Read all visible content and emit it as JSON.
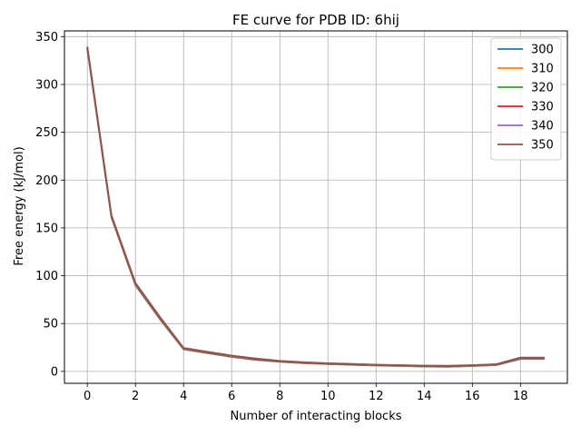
{
  "chart_data": {
    "type": "line",
    "title": "FE curve for PDB ID: 6hij",
    "xlabel": "Number of interacting blocks",
    "ylabel": "Free energy (kJ/mol)",
    "xlim": [
      -0.95,
      19.95
    ],
    "ylim": [
      -12.5,
      356
    ],
    "xticks": [
      0,
      2,
      4,
      6,
      8,
      10,
      12,
      14,
      16,
      18
    ],
    "yticks": [
      0,
      50,
      100,
      150,
      200,
      250,
      300,
      350
    ],
    "grid": true,
    "legend_position": "top-right",
    "x": [
      0,
      1,
      2,
      3,
      4,
      5,
      6,
      7,
      8,
      9,
      10,
      11,
      12,
      13,
      14,
      15,
      16,
      17,
      18,
      19
    ],
    "series": [
      {
        "name": "300",
        "color": "#1f77b4",
        "values": [
          337,
          161,
          90,
          55,
          23,
          19,
          15,
          12,
          10,
          8.5,
          7.5,
          6.8,
          6.0,
          5.5,
          5.0,
          4.8,
          5.5,
          6.5,
          13.0,
          13.0
        ]
      },
      {
        "name": "310",
        "color": "#ff7f0e",
        "values": [
          337.5,
          161.5,
          90.5,
          55.5,
          23.3,
          19.3,
          15.3,
          12.3,
          10.2,
          8.7,
          7.7,
          7.0,
          6.2,
          5.7,
          5.2,
          5.0,
          5.7,
          6.7,
          13.3,
          13.3
        ]
      },
      {
        "name": "320",
        "color": "#2ca02c",
        "values": [
          338,
          162,
          91,
          56,
          23.6,
          19.6,
          15.6,
          12.6,
          10.4,
          8.9,
          7.9,
          7.2,
          6.4,
          5.9,
          5.4,
          5.2,
          5.9,
          6.9,
          13.6,
          13.6
        ]
      },
      {
        "name": "330",
        "color": "#d62728",
        "values": [
          338.5,
          162.5,
          91.5,
          56.5,
          23.9,
          19.9,
          15.9,
          12.9,
          10.6,
          9.1,
          8.1,
          7.4,
          6.6,
          6.1,
          5.6,
          5.4,
          6.1,
          7.1,
          13.9,
          13.9
        ]
      },
      {
        "name": "340",
        "color": "#9467bd",
        "values": [
          339,
          163,
          92,
          57,
          24.2,
          20.2,
          16.2,
          13.2,
          10.8,
          9.3,
          8.3,
          7.6,
          6.8,
          6.3,
          5.8,
          5.6,
          6.3,
          7.3,
          14.2,
          14.2
        ]
      },
      {
        "name": "350",
        "color": "#8c564b",
        "values": [
          339.5,
          163.5,
          92.5,
          57.5,
          24.5,
          20.5,
          16.5,
          13.5,
          11.0,
          9.5,
          8.5,
          7.8,
          7.0,
          6.5,
          6.0,
          5.8,
          6.5,
          7.5,
          14.5,
          14.5
        ]
      }
    ]
  }
}
